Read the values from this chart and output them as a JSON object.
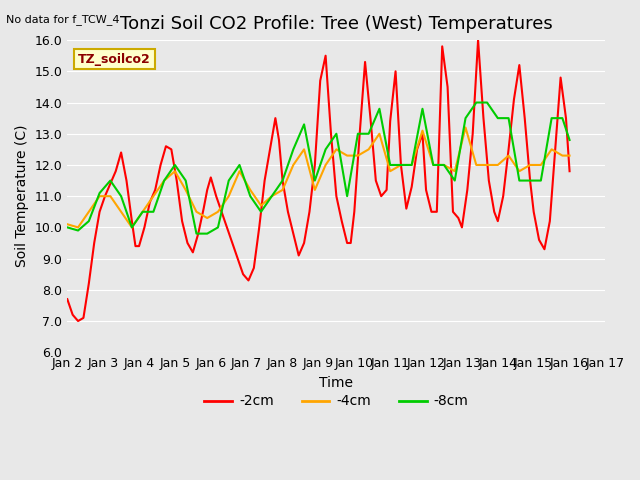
{
  "title": "Tonzi Soil CO2 Profile: Tree (West) Temperatures",
  "top_left_note": "No data for f_TCW_4",
  "ylabel": "Soil Temperature (C)",
  "xlabel": "Time",
  "ylim": [
    6.0,
    16.0
  ],
  "yticks": [
    6.0,
    7.0,
    8.0,
    9.0,
    10.0,
    11.0,
    12.0,
    13.0,
    14.0,
    15.0,
    16.0
  ],
  "xtick_positions": [
    2,
    3,
    4,
    5,
    6,
    7,
    8,
    9,
    10,
    11,
    12,
    13,
    14,
    15,
    16,
    17
  ],
  "xtick_labels": [
    "Jan 2",
    "Jan 3",
    "Jan 4",
    "Jan 5",
    "Jan 6",
    "Jan 7",
    "Jan 8",
    "Jan 9",
    "Jan 10",
    "Jan 11",
    "Jan 12",
    "Jan 13",
    "Jan 14",
    "Jan 15",
    "Jan 16",
    "Jan 17"
  ],
  "legend_label_text": "TZ_soilco2",
  "legend_box_color": "#ffffcc",
  "legend_text_color": "#8B0000",
  "series": [
    {
      "label": "-2cm",
      "color": "#ff0000",
      "x": [
        2.0,
        2.15,
        2.3,
        2.45,
        2.6,
        2.75,
        2.9,
        3.05,
        3.2,
        3.35,
        3.5,
        3.65,
        3.8,
        3.9,
        4.0,
        4.15,
        4.3,
        4.45,
        4.6,
        4.75,
        4.9,
        5.05,
        5.2,
        5.35,
        5.5,
        5.65,
        5.8,
        5.9,
        6.0,
        6.15,
        6.3,
        6.45,
        6.6,
        6.75,
        6.9,
        7.05,
        7.2,
        7.35,
        7.5,
        7.65,
        7.8,
        7.9,
        8.0,
        8.15,
        8.3,
        8.45,
        8.6,
        8.75,
        8.9,
        9.05,
        9.2,
        9.35,
        9.5,
        9.65,
        9.8,
        9.9,
        10.0,
        10.15,
        10.3,
        10.45,
        10.6,
        10.75,
        10.9,
        11.0,
        11.15,
        11.3,
        11.45,
        11.6,
        11.75,
        11.9,
        12.0,
        12.15,
        12.3,
        12.45,
        12.6,
        12.75,
        12.9,
        13.0,
        13.15,
        13.3,
        13.45,
        13.6,
        13.75,
        13.9,
        14.0,
        14.15,
        14.3,
        14.45,
        14.6,
        14.75,
        14.9,
        15.0,
        15.15,
        15.3,
        15.45,
        15.6,
        15.75,
        15.9,
        16.0
      ],
      "y": [
        7.7,
        7.2,
        7.0,
        7.1,
        8.2,
        9.5,
        10.5,
        11.0,
        11.4,
        11.8,
        12.4,
        11.5,
        10.2,
        9.4,
        9.4,
        10.0,
        10.8,
        11.2,
        12.0,
        12.6,
        12.5,
        11.5,
        10.2,
        9.5,
        9.2,
        9.8,
        10.6,
        11.2,
        11.6,
        11.0,
        10.5,
        10.0,
        9.5,
        9.0,
        8.5,
        8.3,
        8.7,
        10.0,
        11.5,
        12.5,
        13.5,
        12.8,
        11.5,
        10.5,
        9.8,
        9.1,
        9.5,
        10.5,
        12.0,
        14.7,
        15.5,
        13.0,
        11.0,
        10.2,
        9.5,
        9.5,
        10.5,
        13.0,
        15.3,
        13.5,
        11.5,
        11.0,
        11.2,
        13.4,
        15.0,
        12.0,
        10.6,
        11.3,
        12.5,
        13.0,
        11.2,
        10.5,
        10.5,
        15.8,
        14.5,
        10.5,
        10.3,
        10.0,
        11.2,
        13.0,
        16.0,
        13.5,
        11.5,
        10.5,
        10.2,
        11.0,
        12.5,
        14.1,
        15.2,
        13.5,
        11.5,
        10.5,
        9.6,
        9.3,
        10.2,
        12.5,
        14.8,
        13.5,
        11.8
      ]
    },
    {
      "label": "-4cm",
      "color": "#ffa500",
      "x": [
        2.0,
        2.3,
        2.6,
        2.9,
        3.2,
        3.5,
        3.8,
        4.1,
        4.4,
        4.7,
        5.0,
        5.3,
        5.6,
        5.9,
        6.2,
        6.5,
        6.8,
        7.1,
        7.4,
        7.7,
        8.0,
        8.3,
        8.6,
        8.9,
        9.2,
        9.5,
        9.8,
        10.1,
        10.4,
        10.7,
        11.0,
        11.3,
        11.6,
        11.9,
        12.2,
        12.5,
        12.8,
        13.1,
        13.4,
        13.7,
        14.0,
        14.3,
        14.6,
        14.9,
        15.2,
        15.5,
        15.8,
        16.0
      ],
      "y": [
        10.1,
        10.0,
        10.5,
        11.0,
        11.0,
        10.5,
        10.0,
        10.5,
        11.0,
        11.5,
        11.8,
        11.2,
        10.5,
        10.3,
        10.5,
        11.0,
        11.8,
        11.2,
        10.7,
        11.0,
        11.2,
        12.0,
        12.5,
        11.2,
        12.0,
        12.5,
        12.3,
        12.3,
        12.5,
        13.0,
        11.8,
        12.0,
        12.0,
        13.1,
        12.0,
        12.0,
        11.8,
        13.2,
        12.0,
        12.0,
        12.0,
        12.3,
        11.8,
        12.0,
        12.0,
        12.5,
        12.3,
        12.3
      ]
    },
    {
      "label": "-8cm",
      "color": "#00cc00",
      "x": [
        2.0,
        2.3,
        2.6,
        2.9,
        3.2,
        3.5,
        3.8,
        4.1,
        4.4,
        4.7,
        5.0,
        5.3,
        5.6,
        5.9,
        6.2,
        6.5,
        6.8,
        7.1,
        7.4,
        7.7,
        8.0,
        8.3,
        8.6,
        8.9,
        9.2,
        9.5,
        9.8,
        10.1,
        10.4,
        10.7,
        11.0,
        11.3,
        11.6,
        11.9,
        12.2,
        12.5,
        12.8,
        13.1,
        13.4,
        13.7,
        14.0,
        14.3,
        14.6,
        14.9,
        15.2,
        15.5,
        15.8,
        16.0
      ],
      "y": [
        10.0,
        9.9,
        10.2,
        11.1,
        11.5,
        11.0,
        10.0,
        10.5,
        10.5,
        11.5,
        12.0,
        11.5,
        9.8,
        9.8,
        10.0,
        11.5,
        12.0,
        11.0,
        10.5,
        11.0,
        11.5,
        12.5,
        13.3,
        11.5,
        12.5,
        13.0,
        11.0,
        13.0,
        13.0,
        13.8,
        12.0,
        12.0,
        12.0,
        13.8,
        12.0,
        12.0,
        11.5,
        13.5,
        14.0,
        14.0,
        13.5,
        13.5,
        11.5,
        11.5,
        11.5,
        13.5,
        13.5,
        12.8
      ]
    }
  ],
  "bg_color": "#e8e8e8",
  "plot_bg_color": "#e8e8e8",
  "grid_color": "#ffffff",
  "title_fontsize": 13,
  "tick_fontsize": 9,
  "label_fontsize": 10
}
